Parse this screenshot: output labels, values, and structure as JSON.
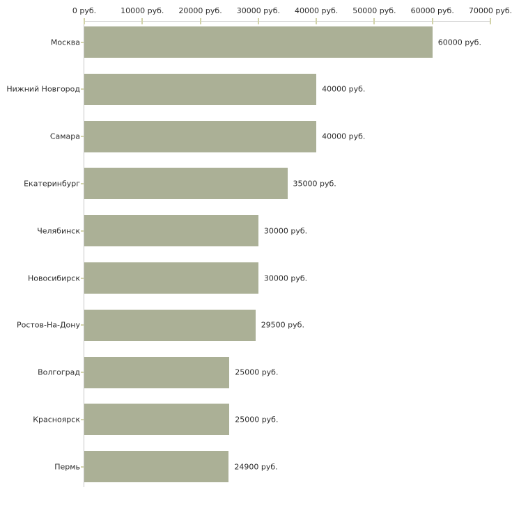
{
  "chart_data": {
    "type": "bar",
    "orientation": "horizontal",
    "title": "",
    "xlabel": "",
    "ylabel": "",
    "grid": false,
    "categories": [
      "Москва",
      "Нижний Новгород",
      "Самара",
      "Екатеринбург",
      "Челябинск",
      "Новосибирск",
      "Ростов-На-Дону",
      "Волгоград",
      "Красноярск",
      "Пермь"
    ],
    "values": [
      60000,
      40000,
      40000,
      35000,
      30000,
      30000,
      29500,
      25000,
      25000,
      24900
    ],
    "value_labels": [
      "60000 руб.",
      "40000 руб.",
      "40000 руб.",
      "35000 руб.",
      "30000 руб.",
      "30000 руб.",
      "29500 руб.",
      "25000 руб.",
      "25000 руб.",
      "24900 руб."
    ],
    "x_axis": {
      "position": "top",
      "min": 0,
      "max": 70000,
      "ticks": [
        0,
        10000,
        20000,
        30000,
        40000,
        50000,
        60000,
        70000
      ],
      "tick_labels": [
        "0 руб.",
        "10000 руб.",
        "20000 руб.",
        "30000 руб.",
        "40000 руб.",
        "50000 руб.",
        "60000 руб.",
        "70000 руб."
      ]
    },
    "colors": {
      "bar": "#abb096",
      "axis_line": "#c6c6c6",
      "tick_mark": "#d2d3a9",
      "text": "#2b2b2b",
      "background": "#ffffff"
    }
  }
}
